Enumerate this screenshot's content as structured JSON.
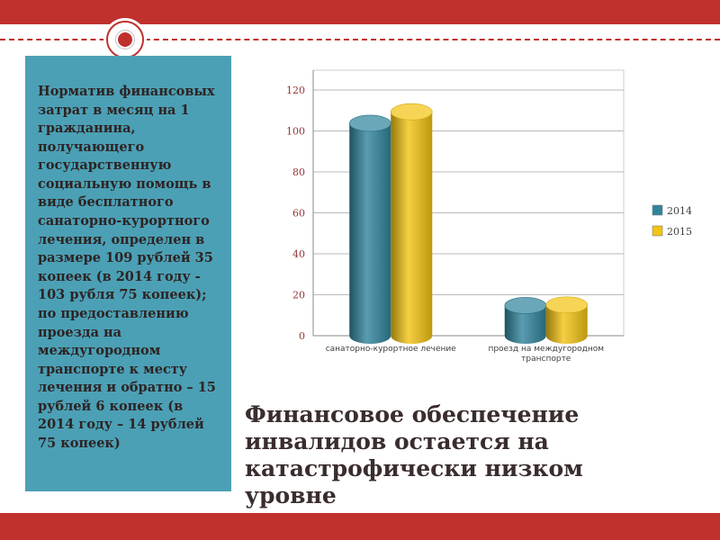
{
  "slide": {
    "sidebar": {
      "text": "Норматив финансовых затрат в месяц на 1 гражданина, получающего государственную социальную помощь в виде бесплатного санаторно-курортного лечения, определен в размере 109 рублей 35 копеек (в 2014 году - 103 рубля 75 копеек); по предоставлению проезда на междугородном транспорте к месту лечения и обратно – 15 рублей 6 копеек (в 2014 году – 14 рублей 75 копеек)"
    },
    "title": {
      "text": "Финансовое обеспечение инвалидов остается на катастрофически низком уровне"
    }
  },
  "colors": {
    "accent_red": "#C0302C",
    "sidebar_teal": "#4BA0B5",
    "axis_label_red": "#943634",
    "text_dark": "#3A2D2D"
  },
  "chart_data": {
    "type": "bar",
    "style": "3d-cylinder",
    "categories": [
      "санаторно-курортное лечение",
      "проезд на междугородном транспорте"
    ],
    "series": [
      {
        "name": "2014",
        "values": [
          103.75,
          14.75
        ],
        "color": "#31859C"
      },
      {
        "name": "2015",
        "values": [
          109.35,
          15.06
        ],
        "color": "#F2C314"
      }
    ],
    "title": "",
    "xlabel": "",
    "ylabel": "",
    "ylim": [
      0,
      120
    ],
    "ytick_step": 20,
    "grid": true,
    "legend_position": "right"
  }
}
